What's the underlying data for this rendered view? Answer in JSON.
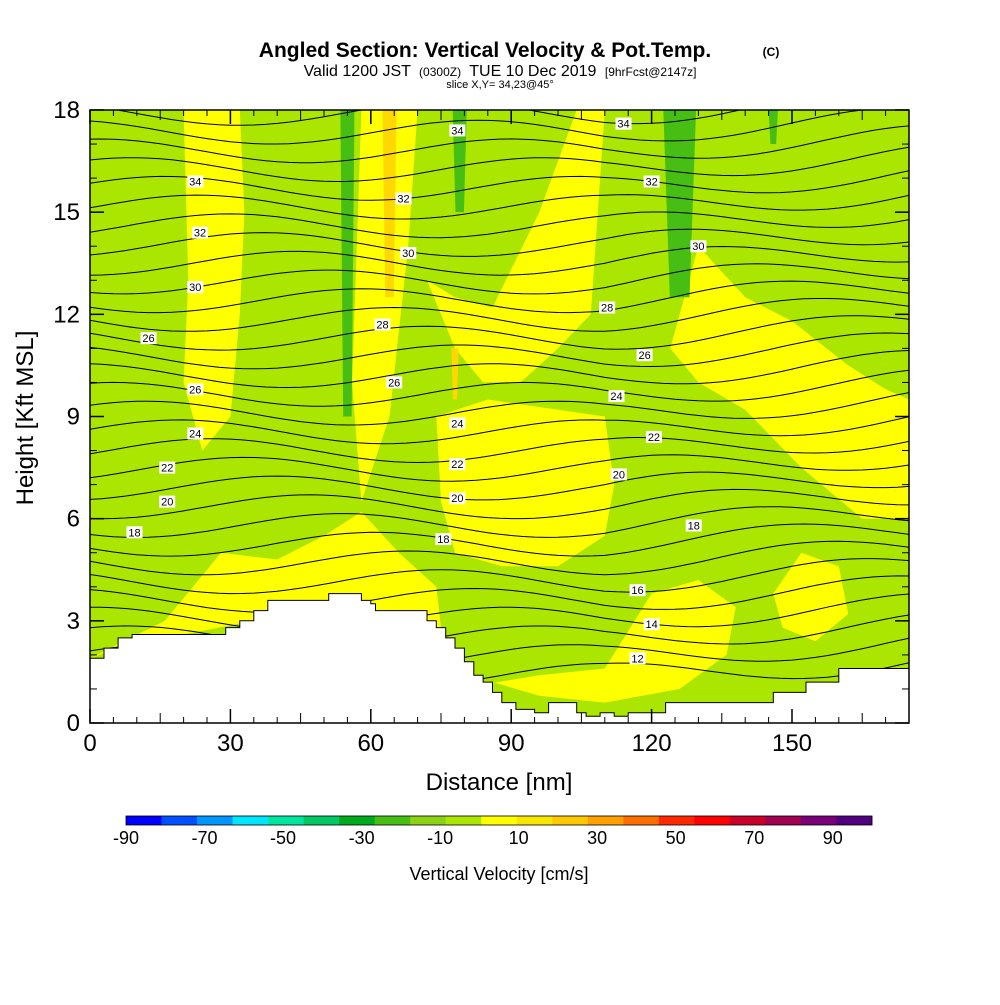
{
  "title": "Angled Section: Vertical Velocity & Pot.Temp.",
  "title_unit": "(C)",
  "valid_prefix": "Valid 1200 JST",
  "valid_utc": "(0300Z)",
  "valid_date": "TUE 10 Dec 2019",
  "forecast_info": "[9hrFcst@2147z]",
  "slice_info": "slice X,Y= 34,23@45°",
  "chart_data": {
    "type": "contour-section",
    "xlabel": "Distance [nm]",
    "ylabel": "Height [Kft MSL]",
    "xlim": [
      0,
      175
    ],
    "ylim": [
      0,
      18
    ],
    "x_ticks": [
      0,
      30,
      60,
      90,
      120,
      150
    ],
    "x_tick_labels": [
      "0",
      "30",
      "60",
      "90",
      "120",
      "150"
    ],
    "y_ticks": [
      0,
      3,
      6,
      9,
      12,
      15,
      18
    ],
    "y_tick_labels": [
      "0",
      "3",
      "6",
      "9",
      "12",
      "15",
      "18"
    ],
    "colorbar": {
      "label": "Vertical Velocity [cm/s]",
      "tick_labels": [
        "-90",
        "-70",
        "-50",
        "-30",
        "-10",
        "10",
        "30",
        "50",
        "70",
        "90"
      ],
      "colors": [
        "#0000ff",
        "#0050ff",
        "#0096ff",
        "#00e6ff",
        "#00e6a0",
        "#00c864",
        "#00aa1e",
        "#46be14",
        "#8cd214",
        "#aae600",
        "#ffff00",
        "#f8e600",
        "#ffc800",
        "#ffa000",
        "#ff6e00",
        "#ff2800",
        "#ff0000",
        "#c80028",
        "#a00050",
        "#780078",
        "#50007f"
      ]
    },
    "vertical_velocity_bands": [
      {
        "label": "-30 to -10",
        "x_center": 79,
        "x_width": 3,
        "y_from": 15,
        "y_to": 18
      },
      {
        "label": "-30 to -10",
        "x_center": 55,
        "x_width": 3,
        "y_from": 9,
        "y_to": 18
      },
      {
        "label": "-30 to -10",
        "x_center": 126,
        "x_width": 7,
        "y_from": 12.5,
        "y_to": 18
      },
      {
        "label": "-30 to -10",
        "x_center": 146,
        "x_width": 2,
        "y_from": 17,
        "y_to": 18
      },
      {
        "label": "10 to 30",
        "x_center": 64,
        "x_width": 3,
        "y_from": 12.5,
        "y_to": 18
      },
      {
        "label": "10 to 30",
        "x_center": 78,
        "x_width": 1.5,
        "y_from": 9.5,
        "y_to": 11
      }
    ],
    "theta_isotherm_labels": [
      {
        "x": 9.5,
        "y": 5.6,
        "label": "18"
      },
      {
        "x": 75.5,
        "y": 5.4,
        "label": "18"
      },
      {
        "x": 129,
        "y": 5.8,
        "label": "18"
      },
      {
        "x": 16.5,
        "y": 6.5,
        "label": "20"
      },
      {
        "x": 78.5,
        "y": 6.6,
        "label": "20"
      },
      {
        "x": 113,
        "y": 7.3,
        "label": "20"
      },
      {
        "x": 16.5,
        "y": 7.5,
        "label": "22"
      },
      {
        "x": 78.5,
        "y": 7.6,
        "label": "22"
      },
      {
        "x": 120.5,
        "y": 8.4,
        "label": "22"
      },
      {
        "x": 22.5,
        "y": 8.5,
        "label": "24"
      },
      {
        "x": 78.5,
        "y": 8.8,
        "label": "24"
      },
      {
        "x": 112.5,
        "y": 9.6,
        "label": "24"
      },
      {
        "x": 22.5,
        "y": 9.8,
        "label": "26"
      },
      {
        "x": 12.5,
        "y": 11.3,
        "label": "26"
      },
      {
        "x": 65,
        "y": 10.0,
        "label": "26"
      },
      {
        "x": 118.5,
        "y": 10.8,
        "label": "26"
      },
      {
        "x": 62.5,
        "y": 11.7,
        "label": "28"
      },
      {
        "x": 110.5,
        "y": 12.2,
        "label": "28"
      },
      {
        "x": 22.5,
        "y": 12.8,
        "label": "30"
      },
      {
        "x": 68,
        "y": 13.8,
        "label": "30"
      },
      {
        "x": 130,
        "y": 14.0,
        "label": "30"
      },
      {
        "x": 23.5,
        "y": 14.4,
        "label": "32"
      },
      {
        "x": 67,
        "y": 15.4,
        "label": "32"
      },
      {
        "x": 120,
        "y": 15.9,
        "label": "32"
      },
      {
        "x": 22.5,
        "y": 15.9,
        "label": "34"
      },
      {
        "x": 78.5,
        "y": 17.4,
        "label": "34"
      },
      {
        "x": 114,
        "y": 17.6,
        "label": "34"
      },
      {
        "x": 117,
        "y": 1.9,
        "label": "12"
      },
      {
        "x": 120,
        "y": 2.9,
        "label": "14"
      },
      {
        "x": 117,
        "y": 3.9,
        "label": "16"
      }
    ],
    "terrain_profile": {
      "x": [
        0,
        3,
        3,
        6,
        6,
        9,
        9,
        20,
        20,
        29,
        29,
        32,
        32,
        35,
        35,
        38,
        38,
        51,
        51,
        58,
        58,
        60,
        60,
        61,
        61,
        64,
        64,
        72,
        72,
        74,
        74,
        76,
        76,
        78,
        78,
        80,
        80,
        82,
        82,
        84,
        84,
        86,
        86,
        88,
        88,
        91,
        91,
        95,
        95,
        98,
        98,
        104,
        104,
        106,
        106,
        109,
        109,
        112,
        112,
        115,
        115,
        123,
        123,
        126,
        126,
        141,
        141,
        146,
        146,
        153,
        153,
        160,
        160,
        175
      ],
      "y": [
        1.9,
        1.9,
        2.2,
        2.2,
        2.5,
        2.5,
        2.6,
        2.6,
        2.6,
        2.6,
        2.8,
        2.8,
        3.0,
        3.0,
        3.3,
        3.3,
        3.6,
        3.6,
        3.8,
        3.8,
        3.6,
        3.6,
        3.5,
        3.5,
        3.3,
        3.3,
        3.3,
        3.3,
        3.0,
        3.0,
        2.8,
        2.8,
        2.5,
        2.5,
        2.2,
        2.2,
        1.8,
        1.8,
        1.4,
        1.4,
        1.2,
        1.2,
        0.9,
        0.9,
        0.6,
        0.6,
        0.4,
        0.4,
        0.3,
        0.3,
        0.6,
        0.6,
        0.3,
        0.3,
        0.2,
        0.2,
        0.3,
        0.3,
        0.2,
        0.2,
        0.3,
        0.3,
        0.6,
        0.6,
        0.6,
        0.6,
        0.6,
        0.6,
        0.9,
        0.9,
        1.2,
        1.2,
        1.6,
        1.6
      ]
    }
  }
}
